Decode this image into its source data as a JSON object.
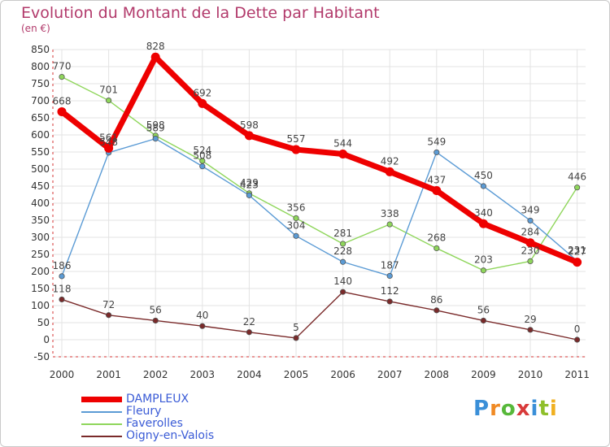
{
  "chart_data": {
    "type": "line",
    "title": "Evolution du Montant de la Dette par Habitant",
    "subtitle": "(en €)",
    "x": [
      "2000",
      "2001",
      "2002",
      "2003",
      "2004",
      "2005",
      "2006",
      "2007",
      "2008",
      "2009",
      "2010",
      "2011"
    ],
    "yticks": [
      "-50",
      "0",
      "50",
      "100",
      "150",
      "200",
      "250",
      "300",
      "350",
      "400",
      "450",
      "500",
      "550",
      "600",
      "650",
      "700",
      "750",
      "800",
      "850"
    ],
    "ylim": [
      -50,
      850
    ],
    "grid": true,
    "legend_position": "bottom-left",
    "series": [
      {
        "name": "DAMPLEUX",
        "color": "#ee0000",
        "values": [
          668,
          561,
          828,
          692,
          598,
          557,
          544,
          492,
          437,
          340,
          284,
          227
        ]
      },
      {
        "name": "Fleury",
        "color": "#5b9bd5",
        "values": [
          186,
          548,
          589,
          508,
          423,
          304,
          228,
          187,
          549,
          450,
          349,
          231
        ]
      },
      {
        "name": "Faverolles",
        "color": "#8fd65b",
        "values": [
          770,
          701,
          598,
          524,
          429,
          356,
          281,
          338,
          268,
          203,
          230,
          446
        ]
      },
      {
        "name": "Oigny-en-Valois",
        "color": "#7a2a2a",
        "values": [
          118,
          72,
          56,
          40,
          22,
          5,
          140,
          112,
          86,
          56,
          29,
          0
        ]
      }
    ]
  },
  "brand": {
    "letters": [
      "P",
      "r",
      "o",
      "x",
      "i",
      "t",
      "i"
    ],
    "colors": [
      "#3a8fd8",
      "#f08a24",
      "#57b83a",
      "#d83a3a",
      "#3a8fd8",
      "#8fbf2a",
      "#f0b020"
    ]
  }
}
